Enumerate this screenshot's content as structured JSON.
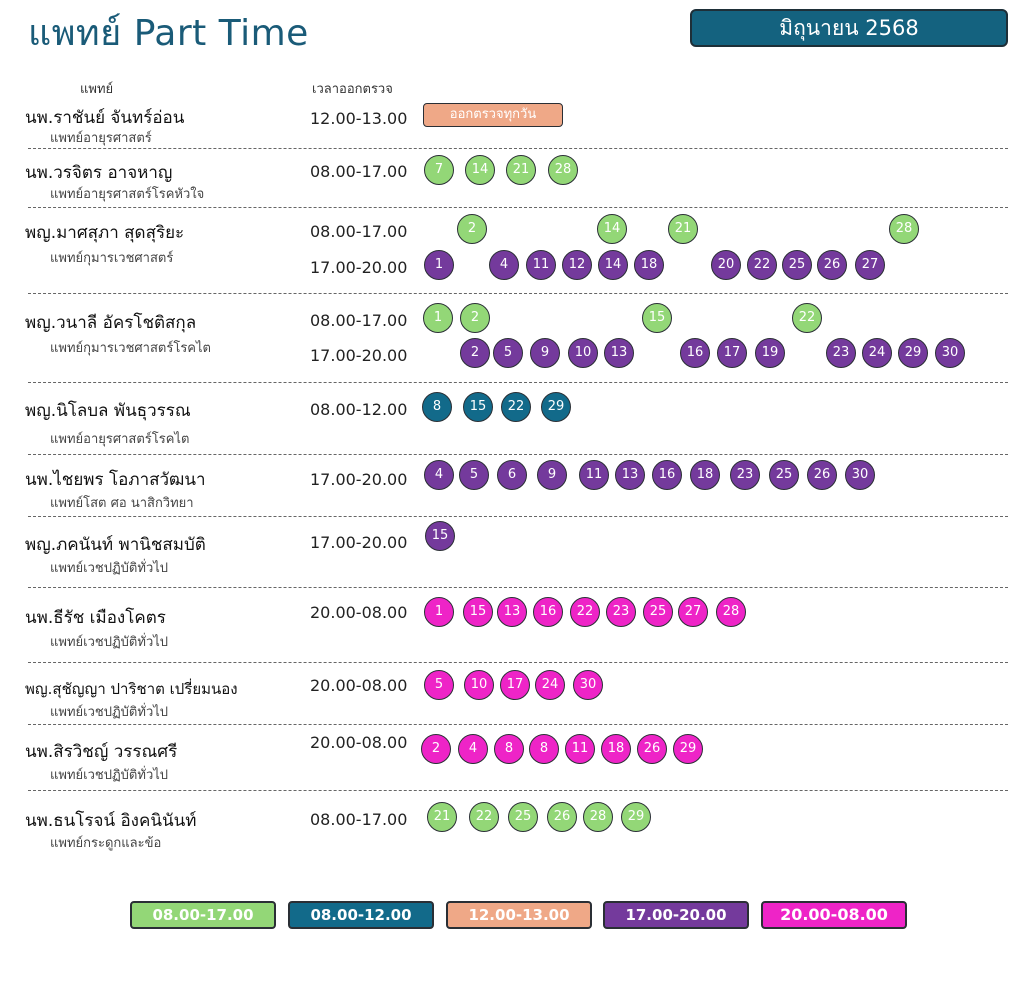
{
  "header": {
    "title": "แพทย์ Part Time",
    "month": "มิถุนายน 2568"
  },
  "columns": {
    "doctor": "แพทย์",
    "time": "เวลาออกตรวจ"
  },
  "colors": {
    "green": "#93d777",
    "blue": "#126a8a",
    "peach": "#efa887",
    "purple": "#743a9c",
    "pink": "#ee24c7"
  },
  "legend": [
    {
      "label": "08.00-17.00",
      "color": "green"
    },
    {
      "label": "08.00-12.00",
      "color": "blue"
    },
    {
      "label": "12.00-13.00",
      "color": "peach"
    },
    {
      "label": "17.00-20.00",
      "color": "purple"
    },
    {
      "label": "20.00-08.00",
      "color": "pink"
    }
  ],
  "doctors": [
    {
      "name": "นพ.ราชันย์ จันทร์อ่อน",
      "specialty": "แพทย์อายุรศาสตร์",
      "shifts": [
        {
          "time": "12.00-13.00",
          "color": "peach",
          "note": "ออกตรวจทุกวัน",
          "days": []
        }
      ]
    },
    {
      "name": "นพ.วรจิตร อาจหาญ",
      "specialty": "แพทย์อายุรศาสตร์โรคหัวใจ",
      "shifts": [
        {
          "time": "08.00-17.00",
          "color": "green",
          "days": [
            7,
            14,
            21,
            28
          ]
        }
      ]
    },
    {
      "name": "พญ.มาศสุภา สุดสุริยะ",
      "specialty": "แพทย์กุมารเวชศาสตร์",
      "shifts": [
        {
          "time": "08.00-17.00",
          "color": "green",
          "days": [
            2,
            14,
            21,
            28
          ]
        },
        {
          "time": "17.00-20.00",
          "color": "purple",
          "days": [
            1,
            4,
            11,
            12,
            14,
            18,
            20,
            22,
            25,
            26,
            27
          ]
        }
      ]
    },
    {
      "name": "พญ.วนาลี อัครโชติสกุล",
      "specialty": "แพทย์กุมารเวชศาสตร์โรคไต",
      "shifts": [
        {
          "time": "08.00-17.00",
          "color": "green",
          "days": [
            1,
            2,
            15,
            22
          ]
        },
        {
          "time": "17.00-20.00",
          "color": "purple",
          "days": [
            2,
            5,
            9,
            10,
            13,
            16,
            17,
            19,
            23,
            24,
            29,
            30
          ]
        }
      ]
    },
    {
      "name": "พญ.นิโลบล พันธุวรรณ",
      "specialty": "แพทย์อายุรศาสตร์โรคไต",
      "shifts": [
        {
          "time": "08.00-12.00",
          "color": "blue",
          "days": [
            8,
            15,
            22,
            29
          ]
        }
      ]
    },
    {
      "name": "นพ.ไชยพร โอภาสวัฒนา",
      "specialty": "แพทย์โสต ศอ นาสิกวิทยา",
      "shifts": [
        {
          "time": "17.00-20.00",
          "color": "purple",
          "days": [
            4,
            5,
            6,
            9,
            11,
            13,
            16,
            18,
            23,
            25,
            26,
            30
          ]
        }
      ]
    },
    {
      "name": "พญ.ภคนันท์ พานิชสมบัติ",
      "specialty": "แพทย์เวชปฏิบัติทั่วไป",
      "shifts": [
        {
          "time": "17.00-20.00",
          "color": "purple",
          "days": [
            15
          ]
        }
      ]
    },
    {
      "name": "นพ.ธีรัช เมืองโคตร",
      "specialty": "แพทย์เวชปฏิบัติทั่วไป",
      "shifts": [
        {
          "time": "20.00-08.00",
          "color": "pink",
          "days": [
            1,
            15,
            13,
            16,
            22,
            23,
            25,
            27,
            28
          ]
        }
      ]
    },
    {
      "name": "พญ.สุชัญญา ปาริชาต เปรี่ยมนอง",
      "specialty": "แพทย์เวชปฏิบัติทั่วไป",
      "shifts": [
        {
          "time": "20.00-08.00",
          "color": "pink",
          "days": [
            5,
            10,
            17,
            24,
            30
          ]
        }
      ]
    },
    {
      "name": "นพ.สิรวิชญ์ วรรณศรี",
      "specialty": "แพทย์เวชปฏิบัติทั่วไป",
      "shifts": [
        {
          "time": "20.00-08.00",
          "color": "pink",
          "days": [
            2,
            4,
            8,
            8,
            11,
            18,
            26,
            29
          ]
        }
      ]
    },
    {
      "name": "นพ.ธนโรจน์ อิงคนินันท์",
      "specialty": "แพทย์กระดูกและข้อ",
      "shifts": [
        {
          "time": "08.00-17.00",
          "color": "green",
          "days": [
            21,
            22,
            25,
            26,
            28,
            29
          ]
        }
      ]
    }
  ]
}
